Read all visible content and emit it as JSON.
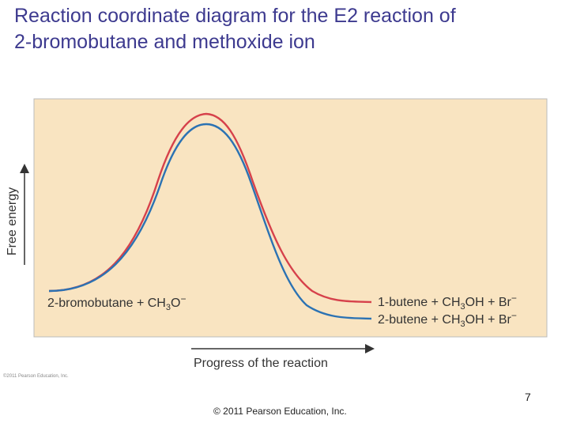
{
  "slide": {
    "title_line1": "Reaction coordinate diagram for the E2 reaction of",
    "title_line2": "2-bromobutane and methoxide ion",
    "page_number": "7",
    "footer": "© 2011 Pearson Education, Inc."
  },
  "figure": {
    "y_axis_label": "Free energy",
    "x_axis_label": "Progress of the reaction",
    "reactants": {
      "text": "2-bromobutane + CH",
      "sub": "3",
      "tail": "O",
      "sup": "−"
    },
    "product_1": {
      "text": "1-butene + CH",
      "sub": "3",
      "tail": "OH + Br",
      "sup": "−"
    },
    "product_2": {
      "text": "2-butene + CH",
      "sub": "3",
      "tail": "OH + Br",
      "sup": "−"
    },
    "small_credit": "©2011 Pearson Education, Inc.",
    "colors": {
      "panel": "#f9e4c1",
      "curve_1_butene": "#d6414b",
      "curve_2_butene": "#2b72b3",
      "axes": "#333333"
    }
  }
}
